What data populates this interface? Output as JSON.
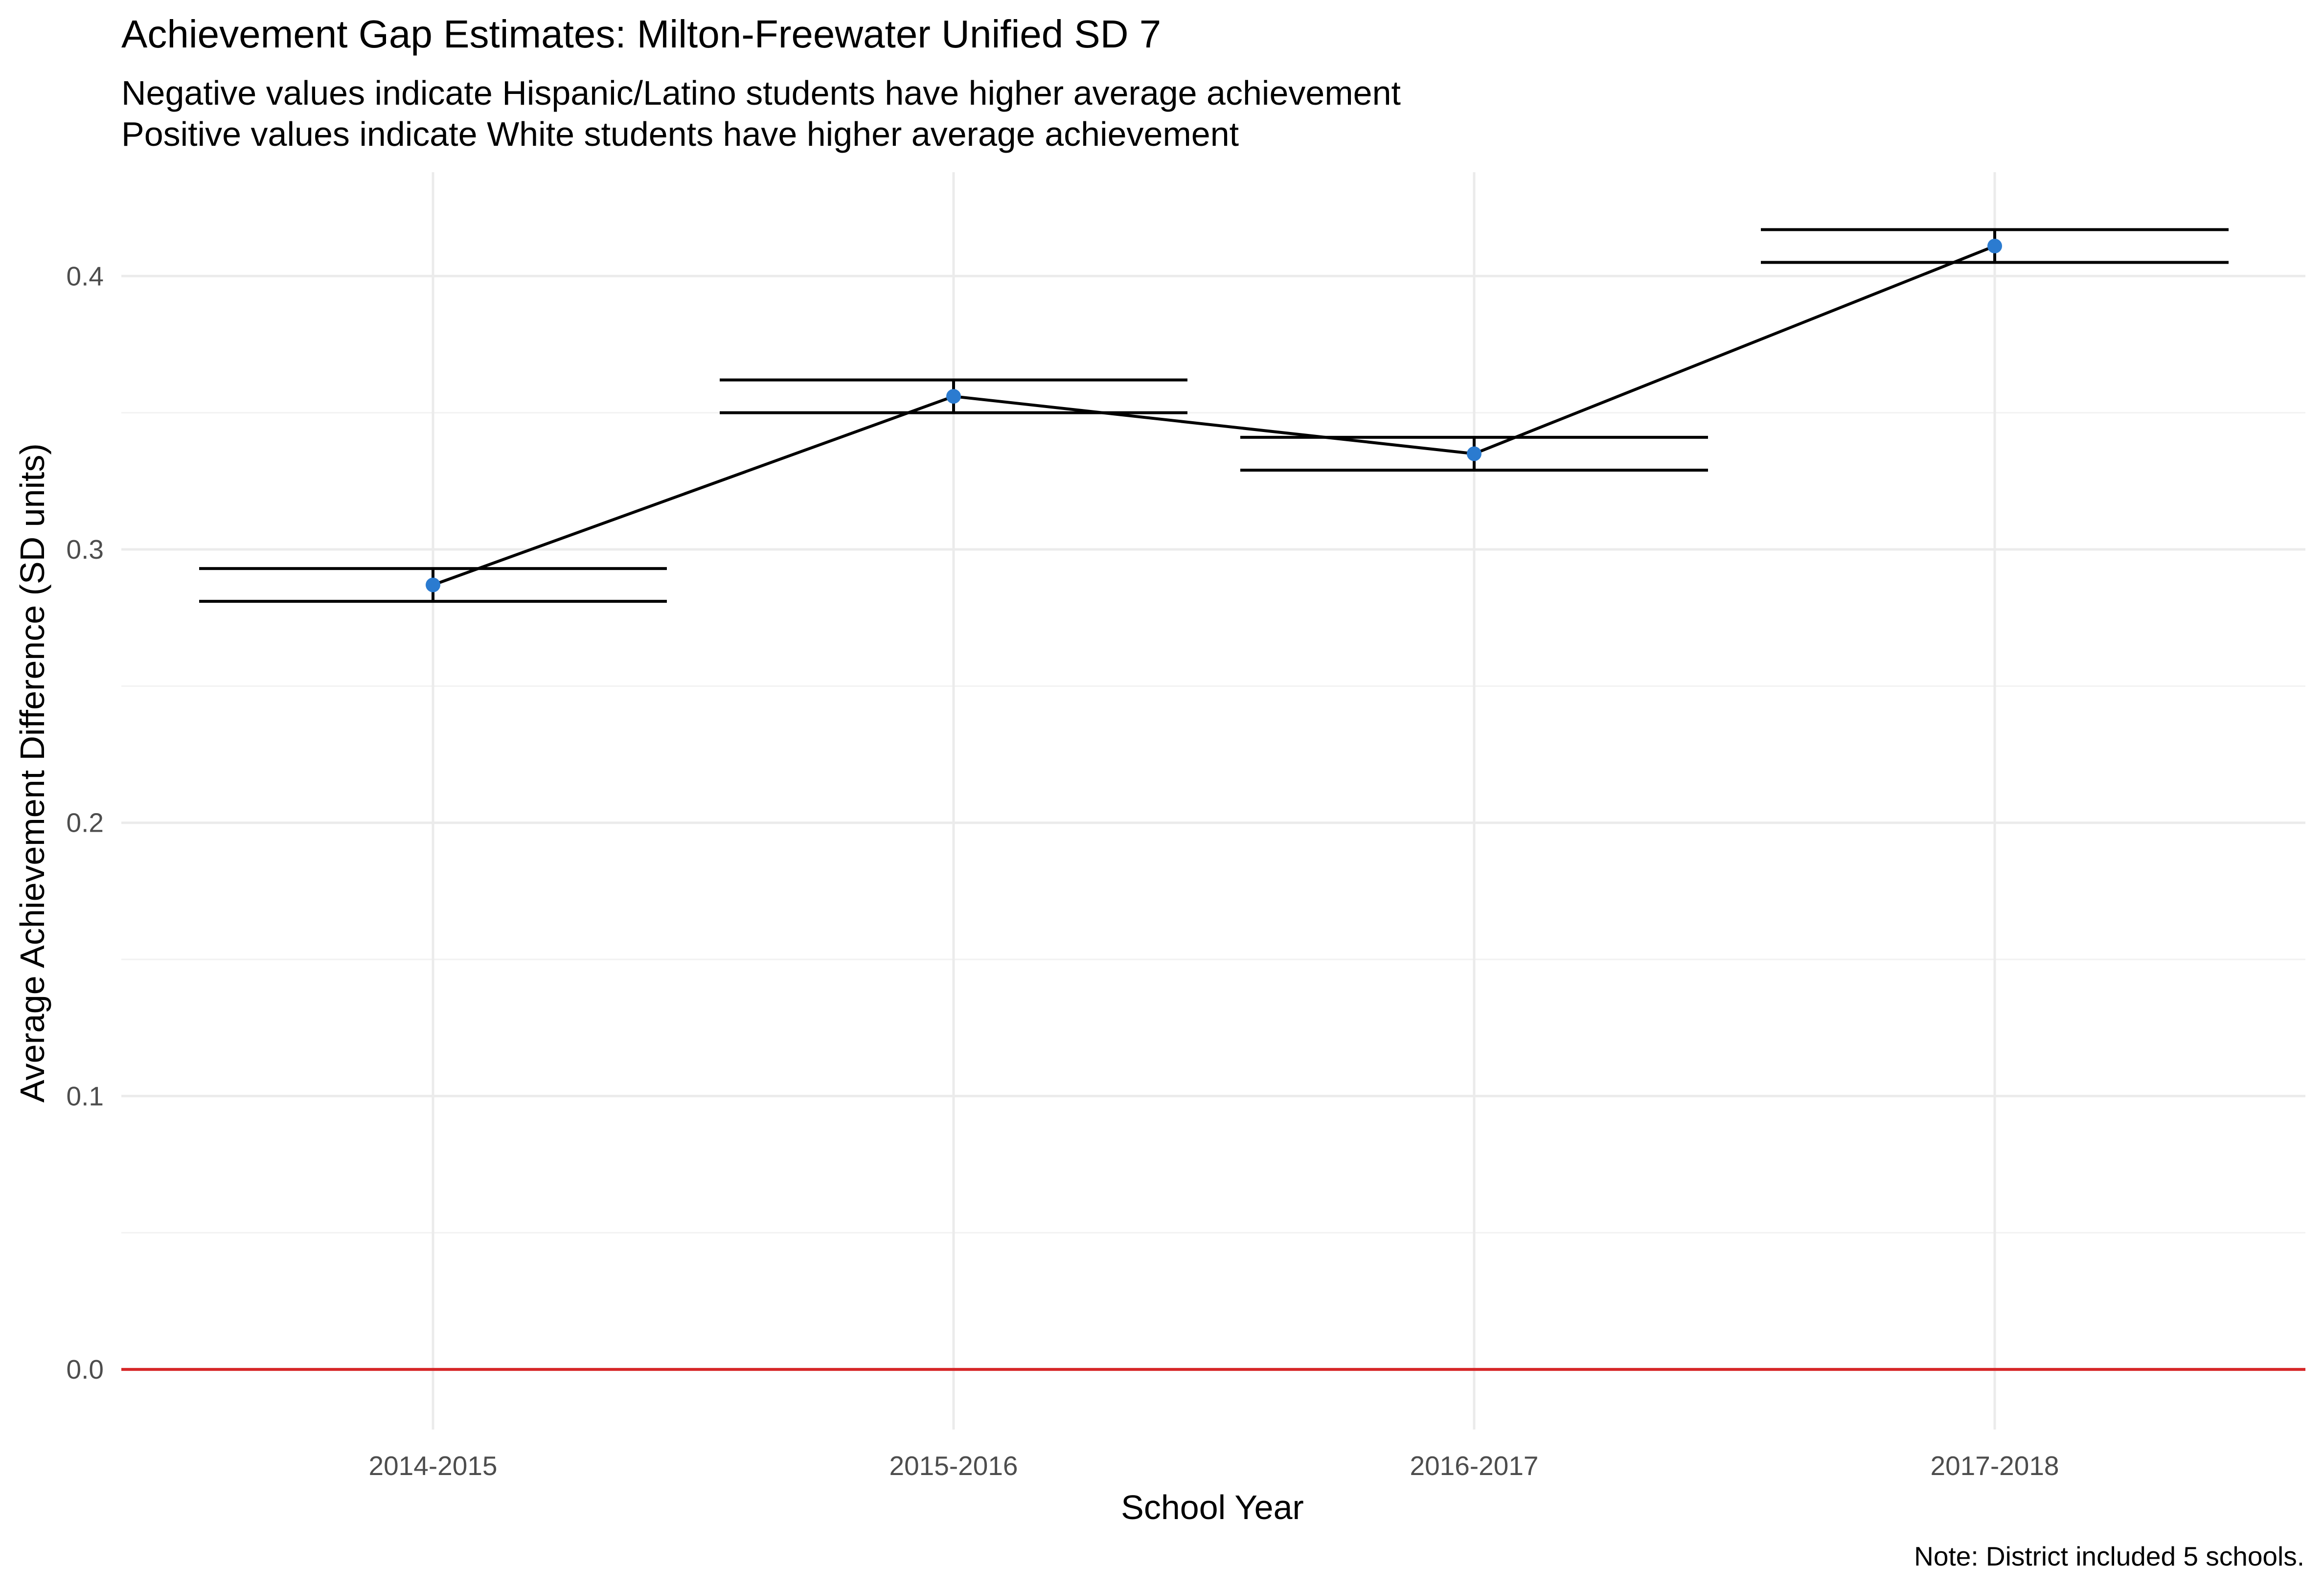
{
  "chart_data": {
    "type": "line",
    "title": "Achievement Gap Estimates: Milton-Freewater Unified SD 7",
    "subtitle_lines": [
      "Negative values indicate Hispanic/Latino students have higher average achievement",
      "Positive values indicate White students have higher average achievement"
    ],
    "caption": "Note: District included 5 schools.",
    "xlabel": "School Year",
    "ylabel": "Average Achievement Difference (SD units)",
    "categories": [
      "2014-2015",
      "2015-2016",
      "2016-2017",
      "2017-2018"
    ],
    "values": [
      0.287,
      0.356,
      0.335,
      0.411
    ],
    "error_low": [
      0.281,
      0.35,
      0.329,
      0.405
    ],
    "error_high": [
      0.293,
      0.362,
      0.341,
      0.417
    ],
    "ylim": [
      -0.022,
      0.438
    ],
    "yticks": [
      0.0,
      0.1,
      0.2,
      0.3,
      0.4
    ],
    "ytick_labels": [
      "0.0",
      "0.1",
      "0.2",
      "0.3",
      "0.4"
    ],
    "reference_line": 0.0,
    "grid": true,
    "colors": {
      "point": "#2b7bd0",
      "line": "#000000",
      "reference_line": "#d62728",
      "grid_major": "#ebebeb",
      "grid_minor": "#f2f2f2",
      "tick_label": "#4d4d4d"
    }
  }
}
